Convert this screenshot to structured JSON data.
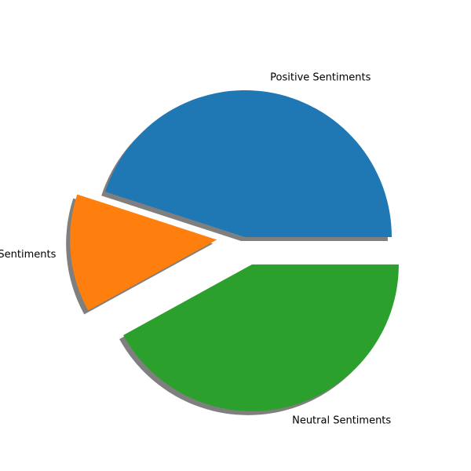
{
  "chart_data": {
    "type": "pie",
    "title": "",
    "labels": [
      "Positive Sentiments",
      "Negative Sentiments",
      "Neutral Sentiments"
    ],
    "values": [
      45,
      13,
      42
    ],
    "units": "percent (estimated)",
    "exploded": [
      "Negative Sentiments",
      "Neutral Sentiments"
    ],
    "shadow": true,
    "colors": [
      "#1f77b4",
      "#ff7f0e",
      "#2ca02c"
    ],
    "shadow_color": "#7f7f7f"
  }
}
